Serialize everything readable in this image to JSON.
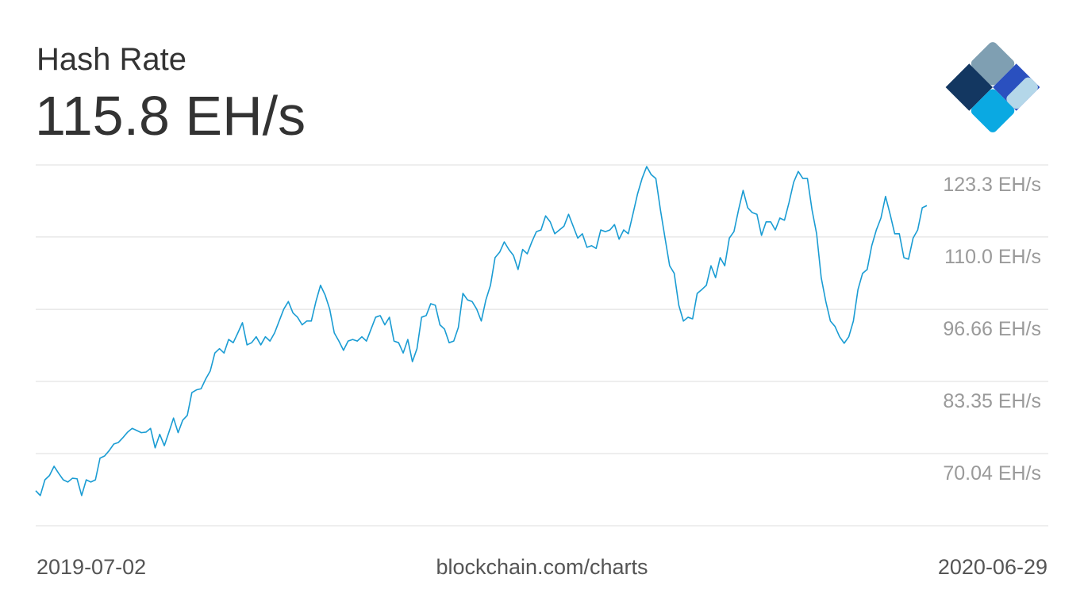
{
  "chart_data": {
    "type": "line",
    "title": "Hash Rate",
    "subtitle": "115.8 EH/s",
    "date_range": [
      "2019-07-02",
      "2020-06-29"
    ],
    "source": "blockchain.com/charts",
    "color": "#1a9cd3",
    "grid": true,
    "ylim": [
      56.73,
      123.3
    ],
    "yticks": [
      {
        "value": 123.3,
        "label": "123.3 EH/s"
      },
      {
        "value": 110.0,
        "label": "110.0 EH/s"
      },
      {
        "value": 96.66,
        "label": "96.66 EH/s"
      },
      {
        "value": 83.35,
        "label": "83.35 EH/s"
      },
      {
        "value": 70.04,
        "label": "70.04 EH/s"
      }
    ],
    "values": [
      63.2,
      62.3,
      65.2,
      66.0,
      67.7,
      66.4,
      65.2,
      64.8,
      65.5,
      65.4,
      62.3,
      65.2,
      64.8,
      65.2,
      69.2,
      69.6,
      70.6,
      71.8,
      72.1,
      73.0,
      74.0,
      74.7,
      74.3,
      73.9,
      74.0,
      74.7,
      71.1,
      73.6,
      71.5,
      74.0,
      76.6,
      73.9,
      76.2,
      77.1,
      81.3,
      81.8,
      82.0,
      83.8,
      85.3,
      88.6,
      89.4,
      88.6,
      91.1,
      90.5,
      92.3,
      94.2,
      90.1,
      90.5,
      91.6,
      90.1,
      91.6,
      90.8,
      92.3,
      94.5,
      96.7,
      98.1,
      96.0,
      95.2,
      93.8,
      94.5,
      94.5,
      98.1,
      101.1,
      99.3,
      96.7,
      92.3,
      90.8,
      89.1,
      90.8,
      91.1,
      90.8,
      91.6,
      90.8,
      93.0,
      95.2,
      95.5,
      93.8,
      95.2,
      90.8,
      90.5,
      88.6,
      91.1,
      87.0,
      89.4,
      95.2,
      95.5,
      97.7,
      97.4,
      93.8,
      93.0,
      90.5,
      90.8,
      93.3,
      99.6,
      98.4,
      98.1,
      96.7,
      94.5,
      98.4,
      101.1,
      106.2,
      107.2,
      109.1,
      107.7,
      106.6,
      104.0,
      107.7,
      106.9,
      109.1,
      111.0,
      111.3,
      113.9,
      112.8,
      110.6,
      111.3,
      112.0,
      114.2,
      112.0,
      109.8,
      110.6,
      108.1,
      108.4,
      107.9,
      111.3,
      111.0,
      111.3,
      112.3,
      109.6,
      111.3,
      110.6,
      114.2,
      117.9,
      120.8,
      123.0,
      121.5,
      120.8,
      115.0,
      109.8,
      104.7,
      103.3,
      97.4,
      94.5,
      95.2,
      94.9,
      99.6,
      100.3,
      101.1,
      104.7,
      102.5,
      106.2,
      104.7,
      109.8,
      111.0,
      115.0,
      118.6,
      115.4,
      114.5,
      114.2,
      110.3,
      112.8,
      112.8,
      111.3,
      113.5,
      113.1,
      116.4,
      120.1,
      122.1,
      120.8,
      120.8,
      115.0,
      110.6,
      102.5,
      98.1,
      94.5,
      93.5,
      91.6,
      90.4,
      91.6,
      94.5,
      100.3,
      103.3,
      104.0,
      108.4,
      111.3,
      113.5,
      117.5,
      114.2,
      110.6,
      110.6,
      106.2,
      105.9,
      109.8,
      111.3,
      115.4,
      115.8
    ]
  }
}
